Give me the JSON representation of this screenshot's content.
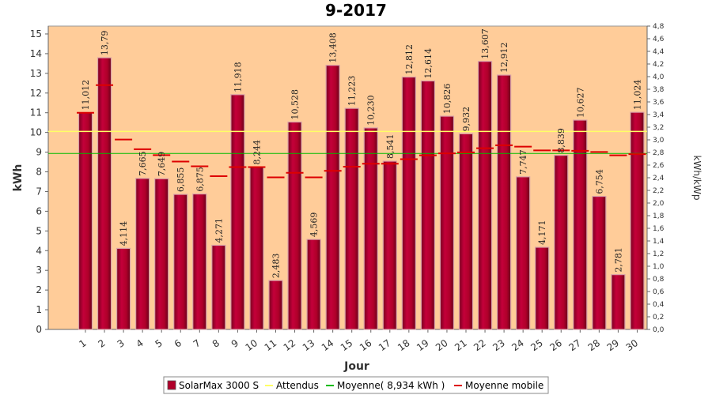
{
  "chart_data": {
    "type": "bar",
    "title": "9-2017",
    "xlabel": "Jour",
    "ylabel": "kWh",
    "y2label": "kWh/kWp",
    "ylim": [
      0,
      15.4
    ],
    "y2lim": [
      0,
      4.8
    ],
    "yticks": [
      "0",
      "1",
      "2",
      "3",
      "4",
      "5",
      "6",
      "7",
      "8",
      "9",
      "10",
      "11",
      "12",
      "13",
      "14",
      "15"
    ],
    "y2ticks": [
      "0,0",
      "0,2",
      "0,4",
      "0,6",
      "0,8",
      "1,0",
      "1,2",
      "1,4",
      "1,6",
      "1,8",
      "2,0",
      "2,2",
      "2,4",
      "2,6",
      "2,8",
      "3,0",
      "3,2",
      "3,4",
      "3,6",
      "3,8",
      "4,0",
      "4,2",
      "4,4",
      "4,6",
      "4,8"
    ],
    "categories": [
      "1",
      "2",
      "3",
      "4",
      "5",
      "6",
      "7",
      "8",
      "9",
      "10",
      "11",
      "12",
      "13",
      "14",
      "15",
      "16",
      "17",
      "18",
      "19",
      "20",
      "21",
      "22",
      "23",
      "24",
      "25",
      "26",
      "27",
      "28",
      "29",
      "30"
    ],
    "series": [
      {
        "name": "SolarMax 3000 S",
        "color": "#b0002a",
        "values": [
          11.012,
          13.79,
          4.114,
          7.665,
          7.649,
          6.855,
          6.875,
          4.271,
          11.918,
          8.244,
          2.483,
          10.528,
          4.569,
          13.408,
          11.223,
          10.23,
          8.541,
          12.812,
          12.614,
          10.826,
          9.932,
          13.607,
          12.912,
          7.747,
          4.171,
          8.839,
          10.627,
          6.754,
          2.781,
          11.024
        ],
        "labels": [
          "11,012",
          "13,79",
          "4,114",
          "7,665",
          "7,649",
          "6,855",
          "6,875",
          "4,271",
          "11,918",
          "8,244",
          "2,483",
          "10,528",
          "4,569",
          "13,408",
          "11,223",
          "10,230",
          "8,541",
          "12,812",
          "12,614",
          "10,826",
          "9,932",
          "13,607",
          "12,912",
          "7,747",
          "4,171",
          "8,839",
          "10,627",
          "6,754",
          "2,781",
          "11,024"
        ]
      },
      {
        "name": "Attendus",
        "color": "#ffff66",
        "value": 10.05
      },
      {
        "name": "Moyenne( 8,934 kWh )",
        "color": "#00bb00",
        "value": 8.934
      },
      {
        "name": "Moyenne mobile",
        "color": "#dd0000",
        "values": [
          11.0,
          12.4,
          9.64,
          9.15,
          8.85,
          8.52,
          8.28,
          7.78,
          8.24,
          8.24,
          7.72,
          7.95,
          7.72,
          8.05,
          8.26,
          8.41,
          8.41,
          8.64,
          8.84,
          8.94,
          8.99,
          9.2,
          9.35,
          9.28,
          9.09,
          9.09,
          9.07,
          9.01,
          8.84,
          8.9
        ]
      }
    ],
    "grid": false,
    "legend_position": "bottom"
  }
}
